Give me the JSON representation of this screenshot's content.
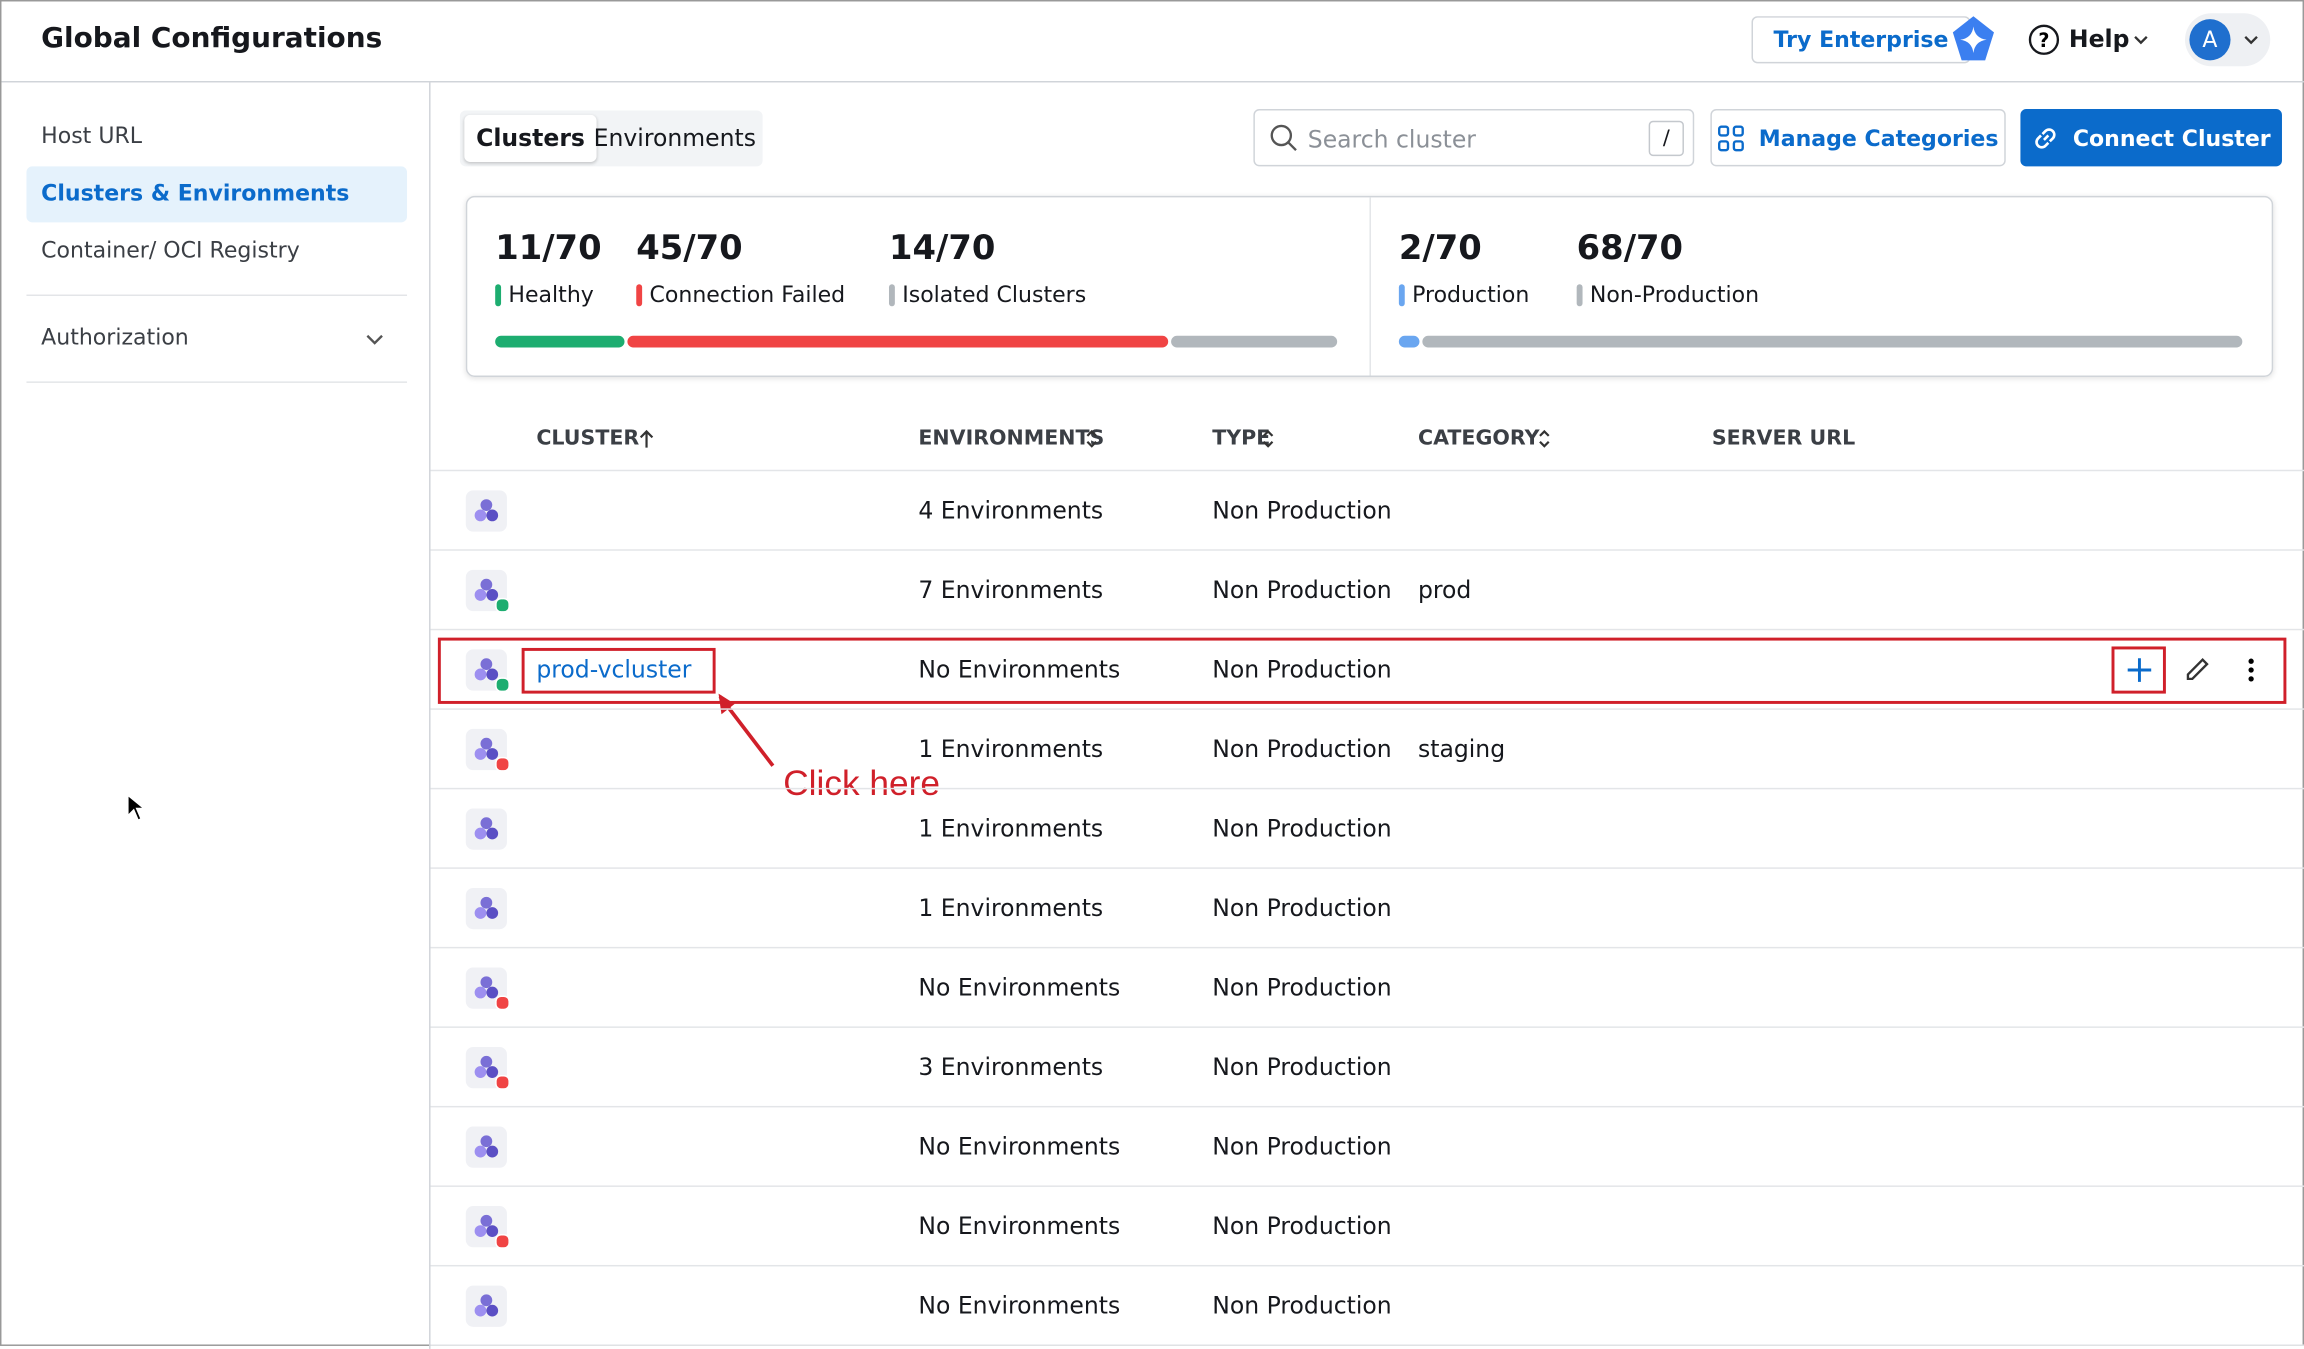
{
  "header": {
    "title": "Global Configurations",
    "try_enterprise": "Try Enterprise",
    "help": "Help",
    "avatar": "A"
  },
  "sidebar": {
    "items": [
      "Host URL",
      "Clusters & Environments",
      "Container/ OCI Registry"
    ],
    "active": 1,
    "authorization": "Authorization"
  },
  "tabs": {
    "items": [
      "Clusters",
      "Environments"
    ],
    "active": 0
  },
  "search": {
    "placeholder": "Search cluster",
    "shortcut": "/"
  },
  "buttons": {
    "manage_categories": "Manage Categories",
    "connect_cluster": "Connect Cluster"
  },
  "stats": {
    "status": [
      {
        "value": "11/70",
        "label": "Healthy",
        "color": "#1dad70"
      },
      {
        "value": "45/70",
        "label": "Connection Failed",
        "color": "#f04444"
      },
      {
        "value": "14/70",
        "label": "Isolated Clusters",
        "color": "#b1b7bc"
      }
    ],
    "type": [
      {
        "value": "2/70",
        "label": "Production",
        "color": "#6aa6f0"
      },
      {
        "value": "68/70",
        "label": "Non-Production",
        "color": "#b1b7bc"
      }
    ]
  },
  "table": {
    "columns": [
      "CLUSTER",
      "ENVIRONMENTS",
      "TYPE",
      "CATEGORY",
      "SERVER URL"
    ],
    "rows": [
      {
        "environments": "4 Environments",
        "type": "Non Production",
        "status_color": null
      },
      {
        "environments": "7 Environments",
        "type": "Non Production",
        "category": "prod",
        "status_color": "#1dad70"
      },
      {
        "cluster": "prod-vcluster",
        "environments": "No Environments",
        "type": "Non Production",
        "status_color": "#1dad70"
      },
      {
        "environments": "1 Environments",
        "type": "Non Production",
        "category": "staging",
        "status_color": "#f04444"
      },
      {
        "environments": "1 Environments",
        "type": "Non Production",
        "status_color": null
      },
      {
        "environments": "1 Environments",
        "type": "Non Production",
        "status_color": null
      },
      {
        "environments": "No Environments",
        "type": "Non Production",
        "status_color": "#f04444"
      },
      {
        "environments": "3 Environments",
        "type": "Non Production",
        "status_color": "#f04444"
      },
      {
        "environments": "No Environments",
        "type": "Non Production",
        "status_color": null
      },
      {
        "environments": "No Environments",
        "type": "Non Production",
        "status_color": "#f04444"
      },
      {
        "environments": "No Environments",
        "type": "Non Production",
        "status_color": null
      }
    ]
  },
  "annotation": "Click here"
}
